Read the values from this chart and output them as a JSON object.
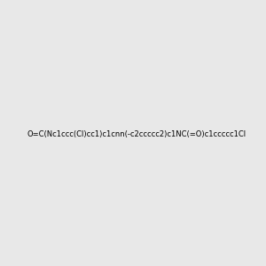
{
  "smiles": "O=C(Nc1ccc(Cl)cc1)c1cnn(-c2ccccc2)c1NC(=O)c1ccccc1Cl",
  "bg_color": "#e8e8e8",
  "image_size": 300,
  "title": "",
  "atom_colors": {
    "C": "#000000",
    "N": "#0000ff",
    "O": "#ff0000",
    "Cl": "#00cc00",
    "H": "#808080"
  }
}
